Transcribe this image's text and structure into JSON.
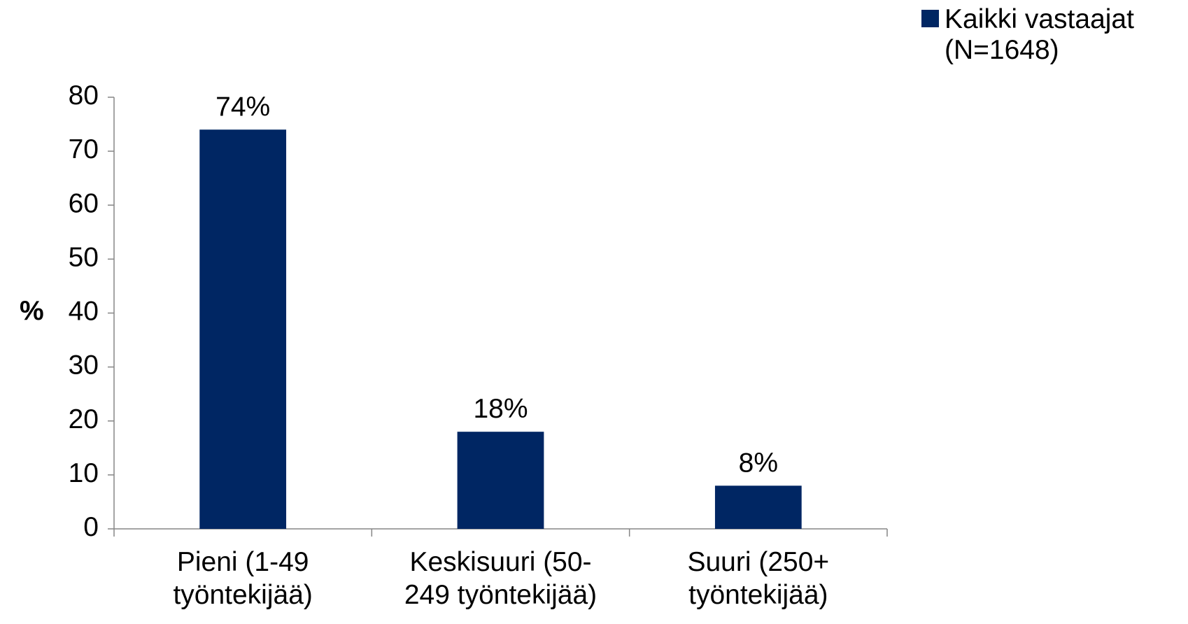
{
  "chart_data": {
    "type": "bar",
    "ylabel": "%",
    "categories": [
      "Pieni (1-49\ntyöntekijää)",
      "Keskisuuri (50-\n249 työntekijää)",
      "Suuri (250+\ntyöntekijää)"
    ],
    "series": [
      {
        "name": "Kaikki vastaajat\n(N=1648)",
        "color": "#002663",
        "values": [
          74,
          18,
          8
        ],
        "value_labels": [
          "74%",
          "18%",
          "8%"
        ]
      }
    ],
    "ylim": [
      0,
      80
    ],
    "yticks": [
      0,
      10,
      20,
      30,
      40,
      50,
      60,
      70,
      80
    ],
    "legend": "top-right"
  }
}
